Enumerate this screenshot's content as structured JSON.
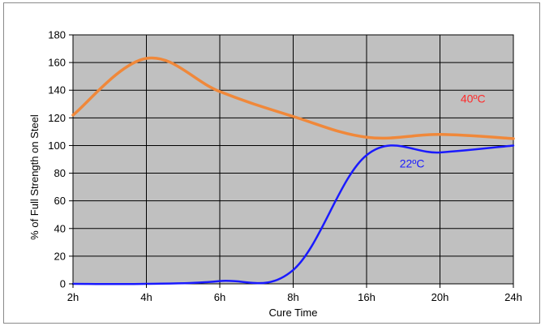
{
  "chart_data": {
    "type": "line",
    "categories": [
      "2h",
      "4h",
      "6h",
      "8h",
      "16h",
      "20h",
      "24h"
    ],
    "xlabel": "Cure Time",
    "ylabel": "% of Full Strength on Steel",
    "ylim": [
      0,
      180
    ],
    "yticks": [
      0,
      20,
      40,
      60,
      80,
      100,
      120,
      140,
      160,
      180
    ],
    "grid": true,
    "plot_background": "#c0c0c0",
    "series": [
      {
        "name": "40ºC",
        "color": "#f0883a",
        "label_color": "#ff2a2a",
        "points": [
          {
            "x": 0,
            "y": 122
          },
          {
            "x": 1,
            "y": 163
          },
          {
            "x": 2,
            "y": 139
          },
          {
            "x": 3,
            "y": 121
          },
          {
            "x": 4,
            "y": 106
          },
          {
            "x": 5,
            "y": 108
          },
          {
            "x": 6,
            "y": 105
          }
        ]
      },
      {
        "name": "22ºC",
        "color": "#1a1aff",
        "label_color": "#1a1aff",
        "points": [
          {
            "x": 0,
            "y": 0
          },
          {
            "x": 1,
            "y": 0
          },
          {
            "x": 2,
            "y": 2
          },
          {
            "x": 3,
            "y": 10
          },
          {
            "x": 4,
            "y": 93
          },
          {
            "x": 5,
            "y": 95
          },
          {
            "x": 6,
            "y": 100
          }
        ]
      }
    ]
  }
}
